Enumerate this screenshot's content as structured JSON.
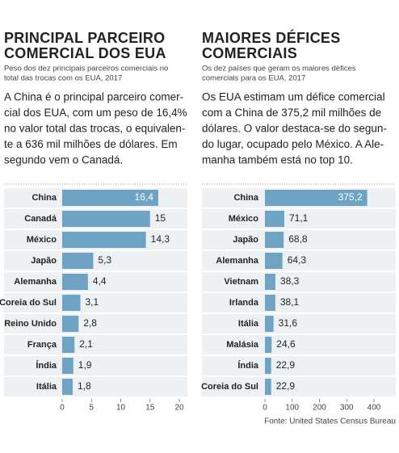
{
  "chart_data": [
    {
      "type": "bar",
      "orientation": "horizontal",
      "title": [
        "PRINCIPAL PARCEIRO",
        "COMERCIAL DOS EUA"
      ],
      "subtitle": [
        "Peso dos dez principais parceiros comerciais no",
        "total das trocas com os EUA, 2017"
      ],
      "text": [
        "A China é o principal parceiro comer-",
        "cial dos EUA, com um peso de 16,4%",
        "no valor total das trocas, o equivalen-",
        "te a 636 mil milhões de dólares. Em",
        "segundo vem o Canadá."
      ],
      "categories": [
        "China",
        "Canadá",
        "México",
        "Japão",
        "Alemanha",
        "Coreia do Sul",
        "Reino Unido",
        "França",
        "Índia",
        "Itália"
      ],
      "values": [
        16.4,
        15,
        14.3,
        5.3,
        4.4,
        3.1,
        2.8,
        2.1,
        1.9,
        1.8
      ],
      "value_labels": [
        "16,4",
        "15",
        "14,3",
        "5,3",
        "4,4",
        "3,1",
        "2,8",
        "2,1",
        "1,9",
        "1,8"
      ],
      "color": "#6fa3c3",
      "xlim": [
        0,
        20
      ],
      "xticks": [
        0,
        5,
        10,
        15,
        20
      ]
    },
    {
      "type": "bar",
      "orientation": "horizontal",
      "title": [
        "MAIORES DÉFICES",
        "COMERCIAIS"
      ],
      "subtitle": [
        "Os dez países que geram os maiores défices",
        "comerciais para os EUA, 2017"
      ],
      "text": [
        "Os EUA estimam um défice comercial",
        "com a China de 375,2 mil milhões de",
        "dólares. O valor destaca-se do segun-",
        "do lugar, ocupado pelo México. A Ale-",
        "manha também está no top 10."
      ],
      "categories": [
        "China",
        "México",
        "Japão",
        "Alemanha",
        "Vietnam",
        "Irlanda",
        "Itália",
        "Malásia",
        "Índia",
        "Coreia do Sul"
      ],
      "values": [
        375.2,
        71.1,
        68.8,
        64.3,
        38.3,
        38.1,
        31.6,
        24.6,
        22.9,
        22.9
      ],
      "value_labels": [
        "375,2",
        "71,1",
        "68,8",
        "64,3",
        "38,3",
        "38,1",
        "31,6",
        "24,6",
        "22,9",
        "22,9"
      ],
      "color": "#6fa3c3",
      "xlim": [
        0,
        400
      ],
      "xticks": [
        0,
        100,
        200,
        300,
        400
      ]
    }
  ],
  "source": "Fonte: United States Census Bureau"
}
